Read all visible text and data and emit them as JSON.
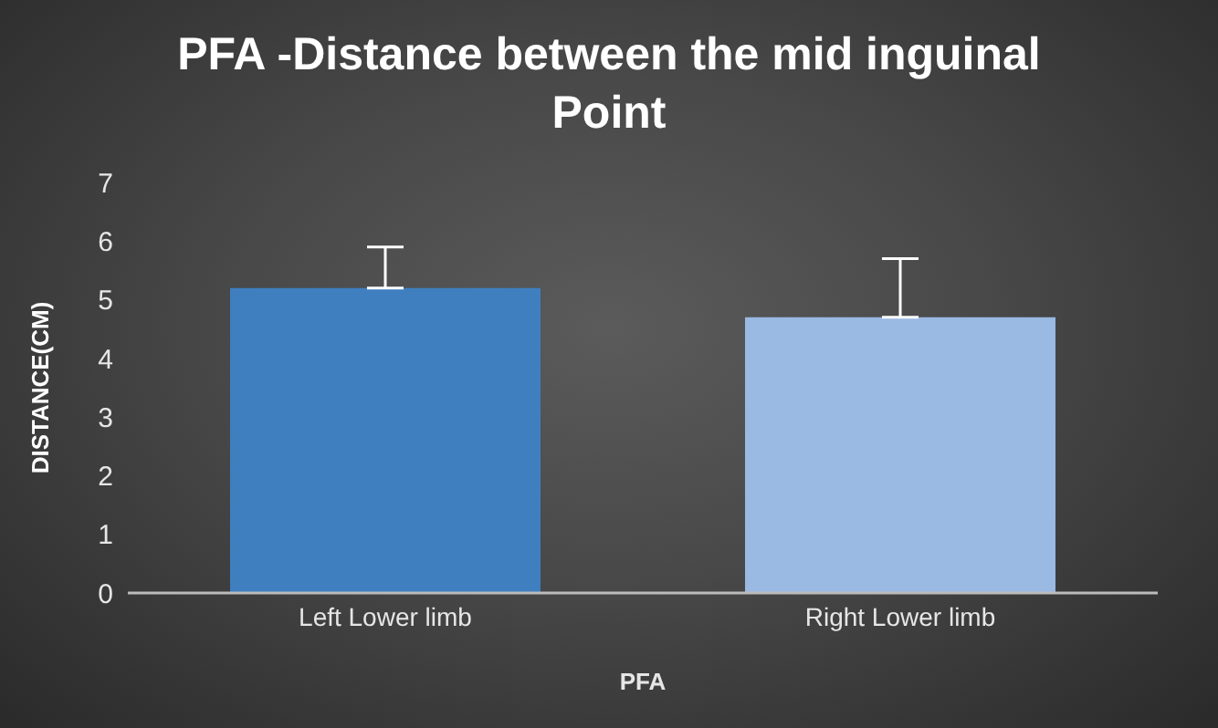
{
  "chart_data": {
    "type": "bar",
    "title": "PFA -Distance between the mid inguinal Point",
    "xlabel": "PFA",
    "ylabel": "DISTANCE(CM)",
    "categories": [
      "Left  Lower limb",
      "Right Lower limb"
    ],
    "values": [
      5.2,
      4.7
    ],
    "colors": [
      "#3f7fc0",
      "#9ab9e3"
    ],
    "errors": [
      [
        5.2,
        5.9
      ],
      [
        4.7,
        5.7
      ]
    ],
    "ylim": [
      0,
      7
    ],
    "yticks": [
      0,
      1,
      2,
      3,
      4,
      5,
      6,
      7
    ],
    "grid": false,
    "legend": false
  }
}
